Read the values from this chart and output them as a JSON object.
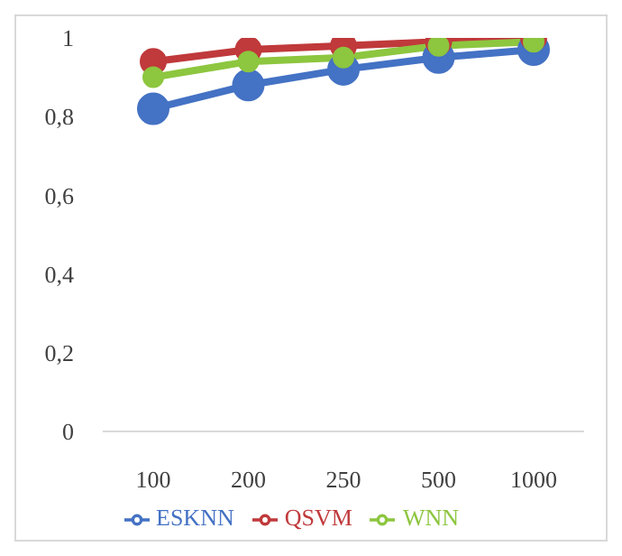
{
  "chart_data": {
    "type": "line",
    "categories": [
      "100",
      "200",
      "250",
      "500",
      "1000"
    ],
    "series": [
      {
        "name": "ESKNN",
        "color": "#4472c4",
        "values": [
          0.82,
          0.88,
          0.92,
          0.95,
          0.97
        ]
      },
      {
        "name": "QSVM",
        "color": "#c0393b",
        "values": [
          0.94,
          0.97,
          0.98,
          0.99,
          1.0
        ]
      },
      {
        "name": "WNN",
        "color": "#8dc63f",
        "values": [
          0.9,
          0.94,
          0.95,
          0.98,
          0.99
        ]
      }
    ],
    "ylim": [
      0,
      1
    ],
    "yticks": [
      {
        "value": 0,
        "label": "0"
      },
      {
        "value": 0.2,
        "label": "0,2"
      },
      {
        "value": 0.4,
        "label": "0,4"
      },
      {
        "value": 0.6,
        "label": "0,6"
      },
      {
        "value": 0.8,
        "label": "0,8"
      },
      {
        "value": 1,
        "label": "1"
      }
    ],
    "grid": false,
    "legend": "bottom",
    "marker": "circle",
    "line_style": "solid"
  }
}
